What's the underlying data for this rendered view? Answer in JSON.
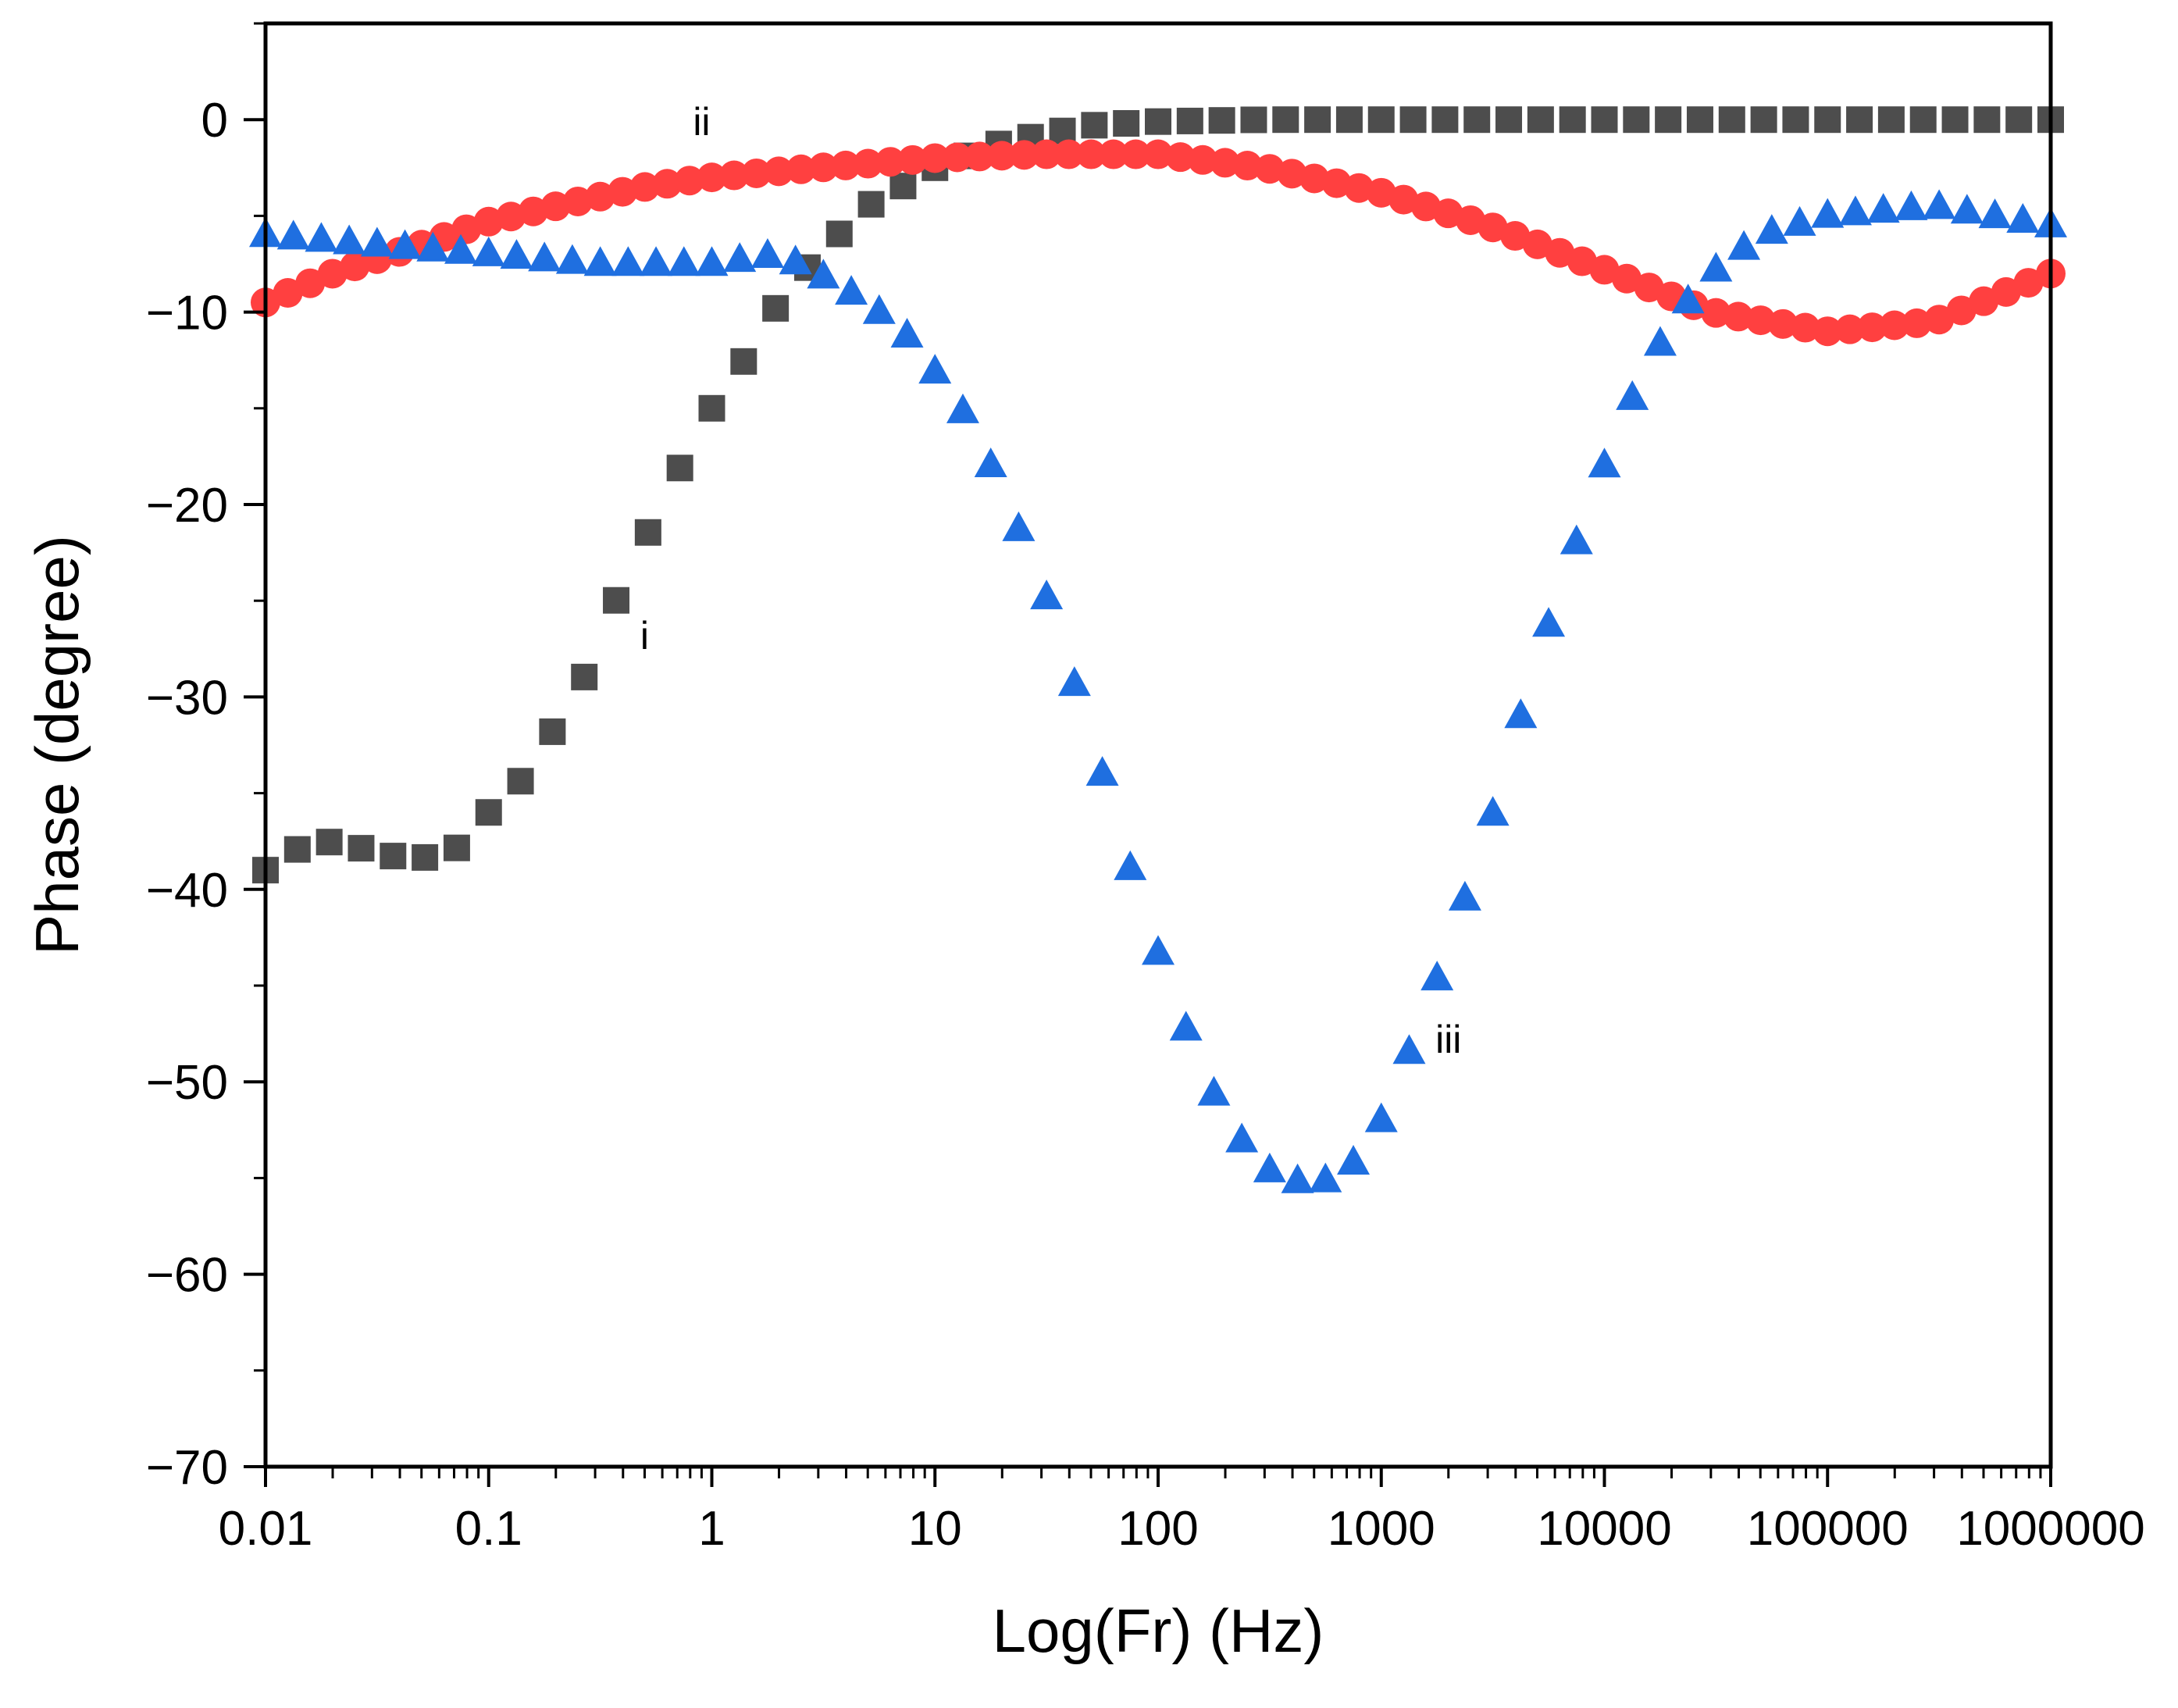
{
  "chart_data": {
    "type": "scatter",
    "xlabel": "Log(Fr) (Hz)",
    "ylabel": "Phase (degree)",
    "x_scale": "log",
    "xlim": [
      0.01,
      1000000
    ],
    "ylim": [
      -70,
      5
    ],
    "x_ticks": [
      {
        "value": 0.01,
        "label": "0.01"
      },
      {
        "value": 0.1,
        "label": "0.1"
      },
      {
        "value": 1,
        "label": "1"
      },
      {
        "value": 10,
        "label": "10"
      },
      {
        "value": 100,
        "label": "100"
      },
      {
        "value": 1000,
        "label": "1000"
      },
      {
        "value": 10000,
        "label": "10000"
      },
      {
        "value": 100000,
        "label": "100000"
      },
      {
        "value": 1000000,
        "label": "1000000"
      }
    ],
    "y_ticks": [
      {
        "value": 0,
        "label": "0"
      },
      {
        "value": -10,
        "label": "−10"
      },
      {
        "value": -20,
        "label": "−20"
      },
      {
        "value": -30,
        "label": "−30"
      },
      {
        "value": -40,
        "label": "−40"
      },
      {
        "value": -50,
        "label": "−50"
      },
      {
        "value": -60,
        "label": "−60"
      },
      {
        "value": -70,
        "label": "−70"
      }
    ],
    "grid": false,
    "series": [
      {
        "name": "i",
        "label": "i",
        "marker": "square",
        "color": "#4d4d4d",
        "label_at": [
          0.5,
          -27.5
        ],
        "points_per_decade": 7,
        "anchors": [
          [
            0.01,
            -39
          ],
          [
            0.013,
            -38
          ],
          [
            0.02,
            -37.5
          ],
          [
            0.03,
            -38
          ],
          [
            0.045,
            -38.5
          ],
          [
            0.07,
            -38
          ],
          [
            0.1,
            -36
          ],
          [
            0.15,
            -34
          ],
          [
            0.2,
            -31.5
          ],
          [
            0.3,
            -28
          ],
          [
            0.4,
            -24
          ],
          [
            0.6,
            -20
          ],
          [
            0.8,
            -17
          ],
          [
            1,
            -15
          ],
          [
            1.5,
            -12
          ],
          [
            2,
            -9.5
          ],
          [
            3,
            -7
          ],
          [
            5,
            -4.5
          ],
          [
            10,
            -2.5
          ],
          [
            20,
            -1.2
          ],
          [
            50,
            -0.3
          ],
          [
            100,
            -0.1
          ],
          [
            300,
            0
          ],
          [
            1000000,
            0
          ]
        ]
      },
      {
        "name": "ii",
        "label": "ii",
        "marker": "circle",
        "color": "#ff4040",
        "label_at": [
          0.9,
          -0.8
        ],
        "points_per_decade": 10,
        "anchors": [
          [
            0.01,
            -9.5
          ],
          [
            0.02,
            -8
          ],
          [
            0.05,
            -6.5
          ],
          [
            0.1,
            -5.3
          ],
          [
            0.2,
            -4.5
          ],
          [
            0.5,
            -3.5
          ],
          [
            1,
            -3
          ],
          [
            3,
            -2.5
          ],
          [
            10,
            -2
          ],
          [
            30,
            -1.8
          ],
          [
            100,
            -1.8
          ],
          [
            300,
            -2.5
          ],
          [
            1000,
            -3.8
          ],
          [
            3000,
            -5.5
          ],
          [
            10000,
            -7.8
          ],
          [
            30000,
            -10
          ],
          [
            100000,
            -11
          ],
          [
            300000,
            -10.5
          ],
          [
            1000000,
            -8
          ]
        ]
      },
      {
        "name": "iii",
        "label": "iii",
        "marker": "triangle",
        "color": "#1f6fe0",
        "label_at": [
          2000,
          -48.5
        ],
        "points_per_decade": 8,
        "anchors": [
          [
            0.01,
            -6
          ],
          [
            0.1,
            -7
          ],
          [
            0.3,
            -7.5
          ],
          [
            1,
            -7.5
          ],
          [
            2,
            -7
          ],
          [
            3,
            -8
          ],
          [
            5,
            -9.5
          ],
          [
            8,
            -11.5
          ],
          [
            15,
            -16
          ],
          [
            30,
            -24
          ],
          [
            50,
            -32
          ],
          [
            80,
            -40
          ],
          [
            120,
            -46
          ],
          [
            200,
            -52
          ],
          [
            300,
            -54.5
          ],
          [
            500,
            -55.5
          ],
          [
            800,
            -54
          ],
          [
            1000,
            -52
          ],
          [
            1500,
            -47
          ],
          [
            2000,
            -43
          ],
          [
            3000,
            -37
          ],
          [
            5000,
            -28
          ],
          [
            8000,
            -21
          ],
          [
            12000,
            -15.5
          ],
          [
            20000,
            -10.5
          ],
          [
            30000,
            -8
          ],
          [
            50000,
            -6
          ],
          [
            100000,
            -5
          ],
          [
            300000,
            -4.5
          ],
          [
            1000000,
            -5.5
          ]
        ]
      }
    ]
  }
}
